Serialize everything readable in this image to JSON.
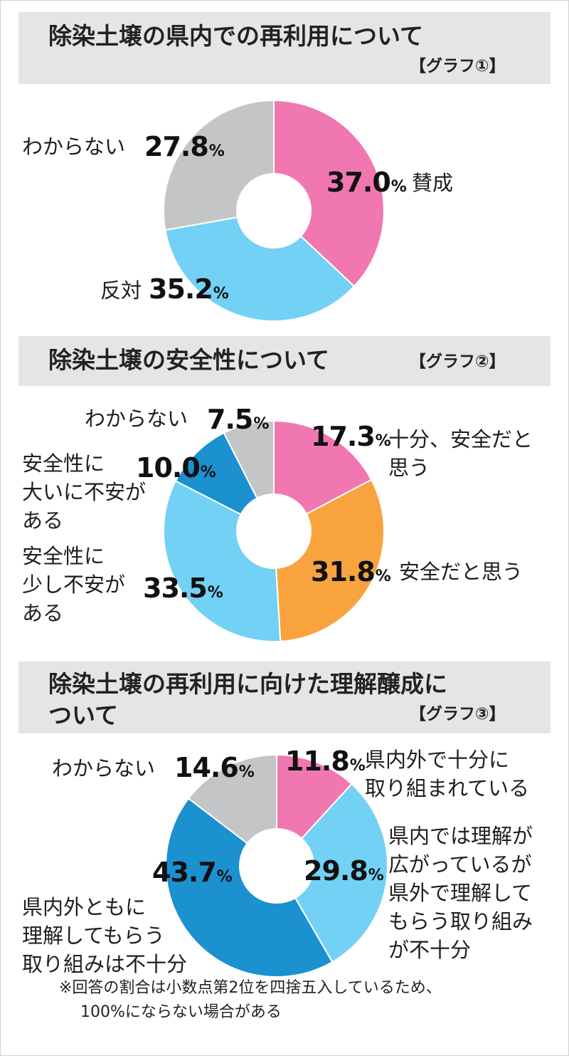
{
  "note": {
    "line1": "※回答の割合は小数点第2位を四捨五入しているため、",
    "line2": "100%にならない場合がある"
  },
  "chart_data": [
    {
      "type": "pie",
      "title": "除染土壌の県内での再利用について",
      "tag": "【グラフ①】",
      "unit": "%",
      "slices": [
        {
          "label": "賛成",
          "value": 37.0,
          "display": "37.0",
          "color": "#f177b1"
        },
        {
          "label": "反対",
          "value": 35.2,
          "display": "35.2",
          "color": "#72d1f4"
        },
        {
          "label": "わからない",
          "value": 27.8,
          "display": "27.8",
          "color": "#c4c5c7"
        }
      ]
    },
    {
      "type": "pie",
      "title": "除染土壌の安全性について",
      "tag": "【グラフ②】",
      "unit": "%",
      "slices": [
        {
          "label": "十分、安全だと思う",
          "label_lines": [
            "十分、安全だと",
            "思う"
          ],
          "value": 17.3,
          "display": "17.3",
          "color": "#f177b1"
        },
        {
          "label": "安全だと思う",
          "label_lines": [
            "安全だと思う"
          ],
          "value": 31.8,
          "display": "31.8",
          "color": "#f8a33e"
        },
        {
          "label": "安全性に少し不安がある",
          "label_lines": [
            "安全性に",
            "少し不安が",
            "ある"
          ],
          "value": 33.5,
          "display": "33.5",
          "color": "#72d1f4"
        },
        {
          "label": "安全性に大いに不安がある",
          "label_lines": [
            "安全性に",
            "大いに不安が",
            "ある"
          ],
          "value": 10.0,
          "display": "10.0",
          "color": "#1b91d0"
        },
        {
          "label": "わからない",
          "label_lines": [
            "わからない"
          ],
          "value": 7.5,
          "display": "7.5",
          "color": "#c4c5c7"
        }
      ]
    },
    {
      "type": "pie",
      "title_lines": [
        "除染土壌の再利用に向けた理解醸成に",
        "ついて"
      ],
      "tag": "【グラフ③】",
      "unit": "%",
      "slices": [
        {
          "label": "県内外で十分に取り組まれている",
          "label_lines": [
            "県内外で十分に",
            "取り組まれている"
          ],
          "value": 11.8,
          "display": "11.8",
          "color": "#f177b1"
        },
        {
          "label": "県内では理解が広がっているが県外で理解してもらう取り組みが不十分",
          "label_lines": [
            "県内では理解が",
            "広がっているが",
            "県外で理解して",
            "もらう取り組み",
            "が不十分"
          ],
          "value": 29.8,
          "display": "29.8",
          "color": "#72d1f4"
        },
        {
          "label": "県内外ともに理解してもらう取り組みは不十分",
          "label_lines": [
            "県内外ともに",
            "理解してもらう",
            "取り組みは不十分"
          ],
          "value": 43.7,
          "display": "43.7",
          "color": "#1b91d0"
        },
        {
          "label": "わからない",
          "label_lines": [
            "わからない"
          ],
          "value": 14.6,
          "display": "14.6",
          "color": "#c4c5c7"
        }
      ]
    }
  ]
}
